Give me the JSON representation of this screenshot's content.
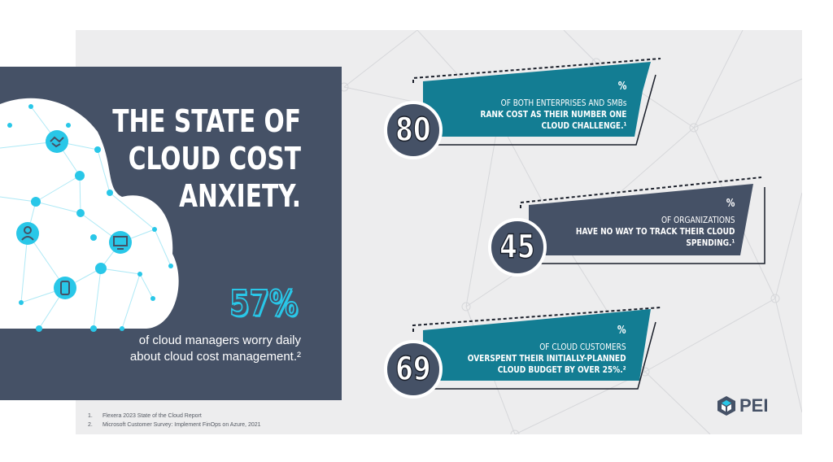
{
  "hero": {
    "title_lines": [
      "THE STATE OF",
      "CLOUD COST",
      "ANXIETY."
    ],
    "stat": "57%",
    "stat_desc_lines": [
      "of cloud managers worry daily",
      "about cloud cost management.²"
    ]
  },
  "stats": [
    {
      "number": "80",
      "pct": "%",
      "line1": "OF BOTH ENTERPRISES AND SMBs",
      "line2": "RANK COST AS THEIR NUMBER ONE",
      "line3": "CLOUD CHALLENGE.¹",
      "color": "#137d93"
    },
    {
      "number": "45",
      "pct": "%",
      "line1": "OF ORGANIZATIONS",
      "line2": "HAVE NO WAY TO TRACK THEIR CLOUD",
      "line3": "SPENDING.¹",
      "color": "#455166"
    },
    {
      "number": "69",
      "pct": "%",
      "line1": "OF CLOUD CUSTOMERS",
      "line2": "OVERSPENT THEIR INITIALLY-PLANNED",
      "line3": "CLOUD BUDGET BY OVER 25%.²",
      "color": "#137d93"
    }
  ],
  "footnotes": [
    {
      "num": "1.",
      "text": "Flexera 2023 State of the Cloud Report"
    },
    {
      "num": "2.",
      "text": "Microsoft Customer Survey: Implement FinOps on Azure, 2021"
    }
  ],
  "logo": {
    "text": "PEI"
  },
  "colors": {
    "navy": "#455166",
    "teal": "#137d93",
    "cyan": "#29c7e8",
    "panel": "#ededee"
  },
  "icons": [
    "handshake-icon",
    "person-icon",
    "monitor-icon",
    "phone-icon"
  ]
}
